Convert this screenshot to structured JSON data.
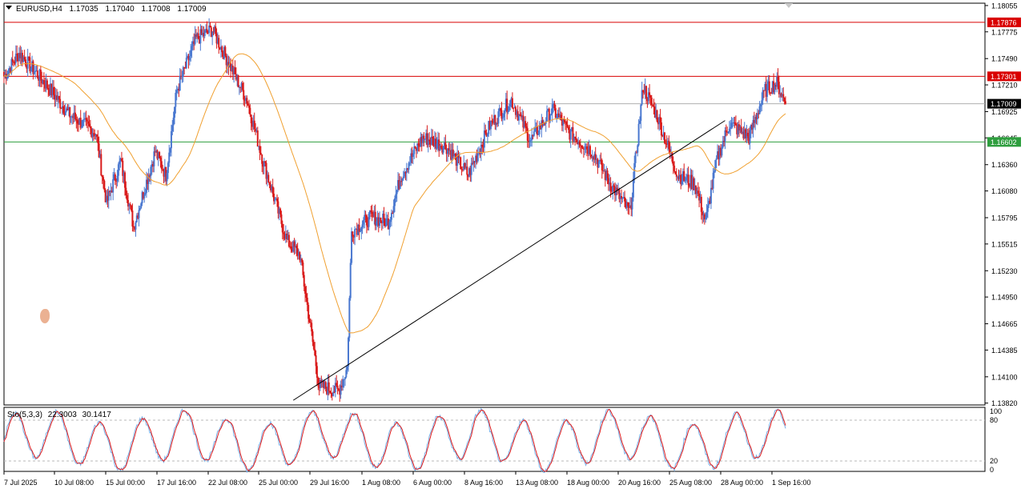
{
  "header": {
    "symbol_tf": "EURUSD,H4",
    "open": "1.17035",
    "high": "1.17040",
    "low": "1.17008",
    "close": "1.17009"
  },
  "price_axis": {
    "ticks": [
      "1.18055",
      "1.17775",
      "1.17490",
      "1.17210",
      "1.16925",
      "1.16645",
      "1.16360",
      "1.16080",
      "1.15795",
      "1.15515",
      "1.15230",
      "1.14950",
      "1.14665",
      "1.14385",
      "1.14100",
      "1.13820"
    ],
    "labels": [
      {
        "text": "1.17876",
        "price": 1.17876,
        "color": "#d90000"
      },
      {
        "text": "1.17301",
        "price": 1.17301,
        "color": "#d90000"
      },
      {
        "text": "1.17009",
        "price": 1.17009,
        "color": "#000000"
      },
      {
        "text": "1.16602",
        "price": 1.16602,
        "color": "#2e9e3e"
      }
    ]
  },
  "time_axis": {
    "labels": [
      "7 Jul 2025",
      "10 Jul 08:00",
      "15 Jul 00:00",
      "17 Jul 16:00",
      "22 Jul 08:00",
      "25 Jul 00:00",
      "29 Jul 16:00",
      "1 Aug 08:00",
      "6 Aug 00:00",
      "8 Aug 16:00",
      "13 Aug 08:00",
      "18 Aug 00:00",
      "20 Aug 16:00",
      "25 Aug 08:00",
      "28 Aug 00:00",
      "1 Sep 16:00"
    ]
  },
  "indicator": {
    "name": "Sto(5,3,3)",
    "main": "22.3003",
    "signal": "30.1417",
    "levels": [
      "100",
      "80",
      "20",
      "0"
    ]
  },
  "colors": {
    "bull": "#4a78d0",
    "bear": "#d91b1b",
    "ma": "#f0a030",
    "red_line": "#d90000",
    "green_line": "#2e9e3e",
    "grey_line": "#b0b0b0",
    "stoch_main": "#7aaee6",
    "stoch_signal": "#e01e1e"
  },
  "chart_data": {
    "type": "candlestick",
    "title": "",
    "horizontal_lines": [
      1.17876,
      1.17301,
      1.17009,
      1.16602
    ],
    "trendline": {
      "from": {
        "bar": 268,
        "price": 1.1385
      },
      "to": {
        "bar": 668,
        "price": 1.1683
      }
    },
    "ylim": [
      1.138,
      1.1808
    ],
    "stochastic_ylim": [
      0,
      100
    ],
    "series": [
      {
        "name": "price path (approx. closes)",
        "anchors": [
          [
            0,
            1.173
          ],
          [
            14,
            1.1755
          ],
          [
            40,
            1.172
          ],
          [
            60,
            1.169
          ],
          [
            85,
            1.167
          ],
          [
            95,
            1.1595
          ],
          [
            108,
            1.164
          ],
          [
            120,
            1.157
          ],
          [
            140,
            1.165
          ],
          [
            150,
            1.1625
          ],
          [
            160,
            1.1715
          ],
          [
            178,
            1.177
          ],
          [
            193,
            1.178
          ],
          [
            210,
            1.174
          ],
          [
            225,
            1.1705
          ],
          [
            240,
            1.164
          ],
          [
            262,
            1.1555
          ],
          [
            274,
            1.154
          ],
          [
            292,
            1.14
          ],
          [
            310,
            1.1395
          ],
          [
            318,
            1.142
          ],
          [
            322,
            1.1565
          ],
          [
            340,
            1.158
          ],
          [
            356,
            1.1575
          ],
          [
            368,
            1.1625
          ],
          [
            388,
            1.1665
          ],
          [
            410,
            1.1655
          ],
          [
            430,
            1.1625
          ],
          [
            450,
            1.1678
          ],
          [
            470,
            1.1705
          ],
          [
            488,
            1.1662
          ],
          [
            508,
            1.1695
          ],
          [
            524,
            1.167
          ],
          [
            545,
            1.165
          ],
          [
            562,
            1.1615
          ],
          [
            580,
            1.1585
          ],
          [
            592,
            1.172
          ],
          [
            606,
            1.1685
          ],
          [
            624,
            1.1625
          ],
          [
            640,
            1.1615
          ],
          [
            650,
            1.1575
          ],
          [
            660,
            1.164
          ],
          [
            672,
            1.168
          ],
          [
            690,
            1.1665
          ],
          [
            705,
            1.1715
          ],
          [
            716,
            1.1723
          ],
          [
            724,
            1.1701
          ]
        ]
      }
    ]
  }
}
